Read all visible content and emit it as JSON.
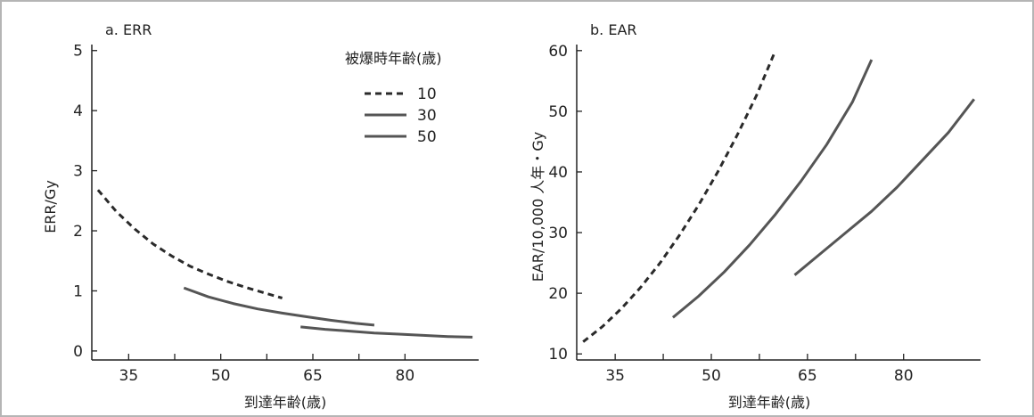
{
  "chart_data": [
    {
      "type": "line",
      "title": "a.  ERR",
      "xlabel": "到達年齢(歳)",
      "ylabel": "ERR/Gy",
      "xlim": [
        29,
        92
      ],
      "ylim": [
        -0.15,
        5.1
      ],
      "xticks": [
        35,
        50,
        65,
        80
      ],
      "xminor": [
        42.5,
        57.5,
        72.5
      ],
      "yticks": [
        0,
        1,
        2,
        3,
        4,
        5
      ],
      "legend_title": "被爆時年齢(歳)",
      "legend_position": "top-right",
      "series": [
        {
          "name": "10",
          "style": "dashed",
          "x": [
            30,
            33,
            36,
            39,
            42,
            45,
            48,
            51,
            54,
            57,
            60
          ],
          "y": [
            2.68,
            2.32,
            2.03,
            1.78,
            1.58,
            1.41,
            1.28,
            1.16,
            1.06,
            0.97,
            0.88
          ]
        },
        {
          "name": "30",
          "style": "solid",
          "x": [
            44,
            48,
            52,
            56,
            60,
            64,
            68,
            72,
            75
          ],
          "y": [
            1.05,
            0.9,
            0.79,
            0.7,
            0.63,
            0.57,
            0.51,
            0.46,
            0.43
          ]
        },
        {
          "name": "50",
          "style": "solid",
          "x": [
            63,
            67,
            71,
            75,
            79,
            83,
            87,
            91
          ],
          "y": [
            0.4,
            0.36,
            0.33,
            0.3,
            0.28,
            0.26,
            0.24,
            0.23
          ]
        }
      ]
    },
    {
      "type": "line",
      "title": "b.  EAR",
      "xlabel": "到達年齢(歳)",
      "ylabel": "EAR/10,000 人年・Gy",
      "xlim": [
        29,
        92
      ],
      "ylim": [
        9,
        61
      ],
      "xticks": [
        35,
        50,
        65,
        80
      ],
      "xminor": [
        42.5,
        57.5,
        72.5
      ],
      "yticks": [
        10,
        20,
        30,
        40,
        50,
        60
      ],
      "series": [
        {
          "name": "10",
          "style": "dashed",
          "x": [
            30,
            33,
            36,
            39,
            42,
            45,
            48,
            51,
            54,
            57,
            60
          ],
          "y": [
            12,
            14.5,
            17.5,
            21,
            25,
            29.5,
            34.5,
            40,
            46,
            52.5,
            60
          ]
        },
        {
          "name": "30",
          "style": "solid",
          "x": [
            44,
            48,
            52,
            56,
            60,
            64,
            68,
            72,
            75
          ],
          "y": [
            16,
            19.5,
            23.5,
            28,
            33,
            38.5,
            44.5,
            51.5,
            58.5
          ]
        },
        {
          "name": "50",
          "style": "solid",
          "x": [
            63,
            67,
            71,
            75,
            79,
            83,
            87,
            91
          ],
          "y": [
            23,
            26.5,
            30,
            33.5,
            37.5,
            42,
            46.5,
            52
          ]
        }
      ]
    }
  ],
  "colors": {
    "dashed_series": "#2a2a2a",
    "solid_series": "#555555",
    "axis": "#222222",
    "frame": "#b5b5b5"
  }
}
